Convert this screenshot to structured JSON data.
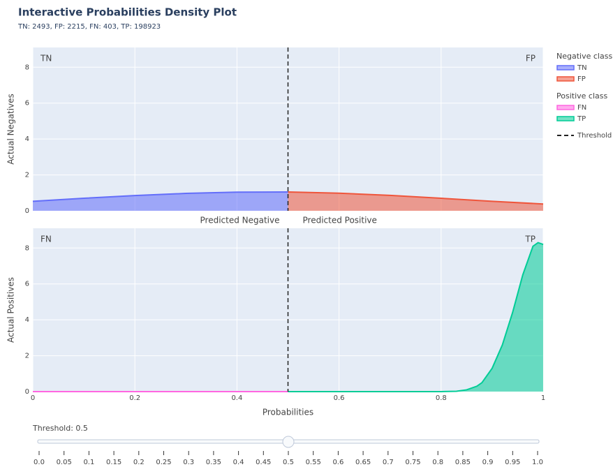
{
  "title": "Interactive Probabilities Density Plot",
  "subtitle": "TN: 2493, FP: 2215, FN: 403, TP: 198923",
  "threshold": {
    "name": "Threshold",
    "value": 0.5
  },
  "chart_data": [
    {
      "type": "area",
      "ylabel": "Actual Negatives",
      "legend_title": "Negative class",
      "xlim": [
        0,
        1
      ],
      "ylim": [
        0,
        9.1
      ],
      "yticks": [
        0,
        2,
        4,
        6,
        8
      ],
      "xticks": [
        0,
        0.2,
        0.4,
        0.6,
        0.8,
        1
      ],
      "grid": true,
      "corner_labels": [
        "TN",
        "FP"
      ],
      "bottom_labels": [
        "Predicted Negative",
        "Predicted Positive"
      ],
      "series": [
        {
          "name": "TN",
          "color": "#636efa",
          "x": [
            0,
            0.1,
            0.2,
            0.3,
            0.4,
            0.5
          ],
          "values": [
            0.53,
            0.7,
            0.85,
            0.97,
            1.04,
            1.05
          ]
        },
        {
          "name": "FP",
          "color": "#ef553b",
          "x": [
            0.5,
            0.6,
            0.7,
            0.8,
            0.9,
            1
          ],
          "values": [
            1.05,
            0.98,
            0.86,
            0.7,
            0.53,
            0.38
          ]
        }
      ]
    },
    {
      "type": "area",
      "ylabel": "Actual Positives",
      "legend_title": "Positive class",
      "xlabel": "Probabilities",
      "xlim": [
        0,
        1
      ],
      "ylim": [
        0,
        9.1
      ],
      "yticks": [
        0,
        2,
        4,
        6,
        8
      ],
      "xticks": [
        0,
        0.2,
        0.4,
        0.6,
        0.8,
        1
      ],
      "grid": true,
      "corner_labels": [
        "FN",
        "TP"
      ],
      "series": [
        {
          "name": "FN",
          "color": "#ff66e0",
          "x": [
            0,
            0.25,
            0.5
          ],
          "values": [
            0,
            0,
            0
          ]
        },
        {
          "name": "TP",
          "color": "#00cc96",
          "x": [
            0.5,
            0.8,
            0.83,
            0.85,
            0.87,
            0.88,
            0.9,
            0.92,
            0.94,
            0.96,
            0.98,
            0.99,
            1
          ],
          "values": [
            0,
            0,
            0.02,
            0.1,
            0.3,
            0.5,
            1.3,
            2.6,
            4.4,
            6.5,
            8.1,
            8.3,
            8.2
          ]
        }
      ]
    }
  ],
  "slider": {
    "label": "Threshold: 0.5",
    "range": [
      0,
      1
    ],
    "ticks": [
      {
        "value": 0,
        "label": "0.0"
      },
      0.05,
      0.1,
      0.15,
      0.2,
      0.25,
      0.3,
      0.35,
      0.4,
      0.45,
      0.5,
      0.55,
      0.6,
      0.65,
      0.7,
      0.75,
      0.8,
      0.85,
      0.9,
      0.95,
      {
        "value": 1,
        "label": "1.0"
      }
    ]
  }
}
